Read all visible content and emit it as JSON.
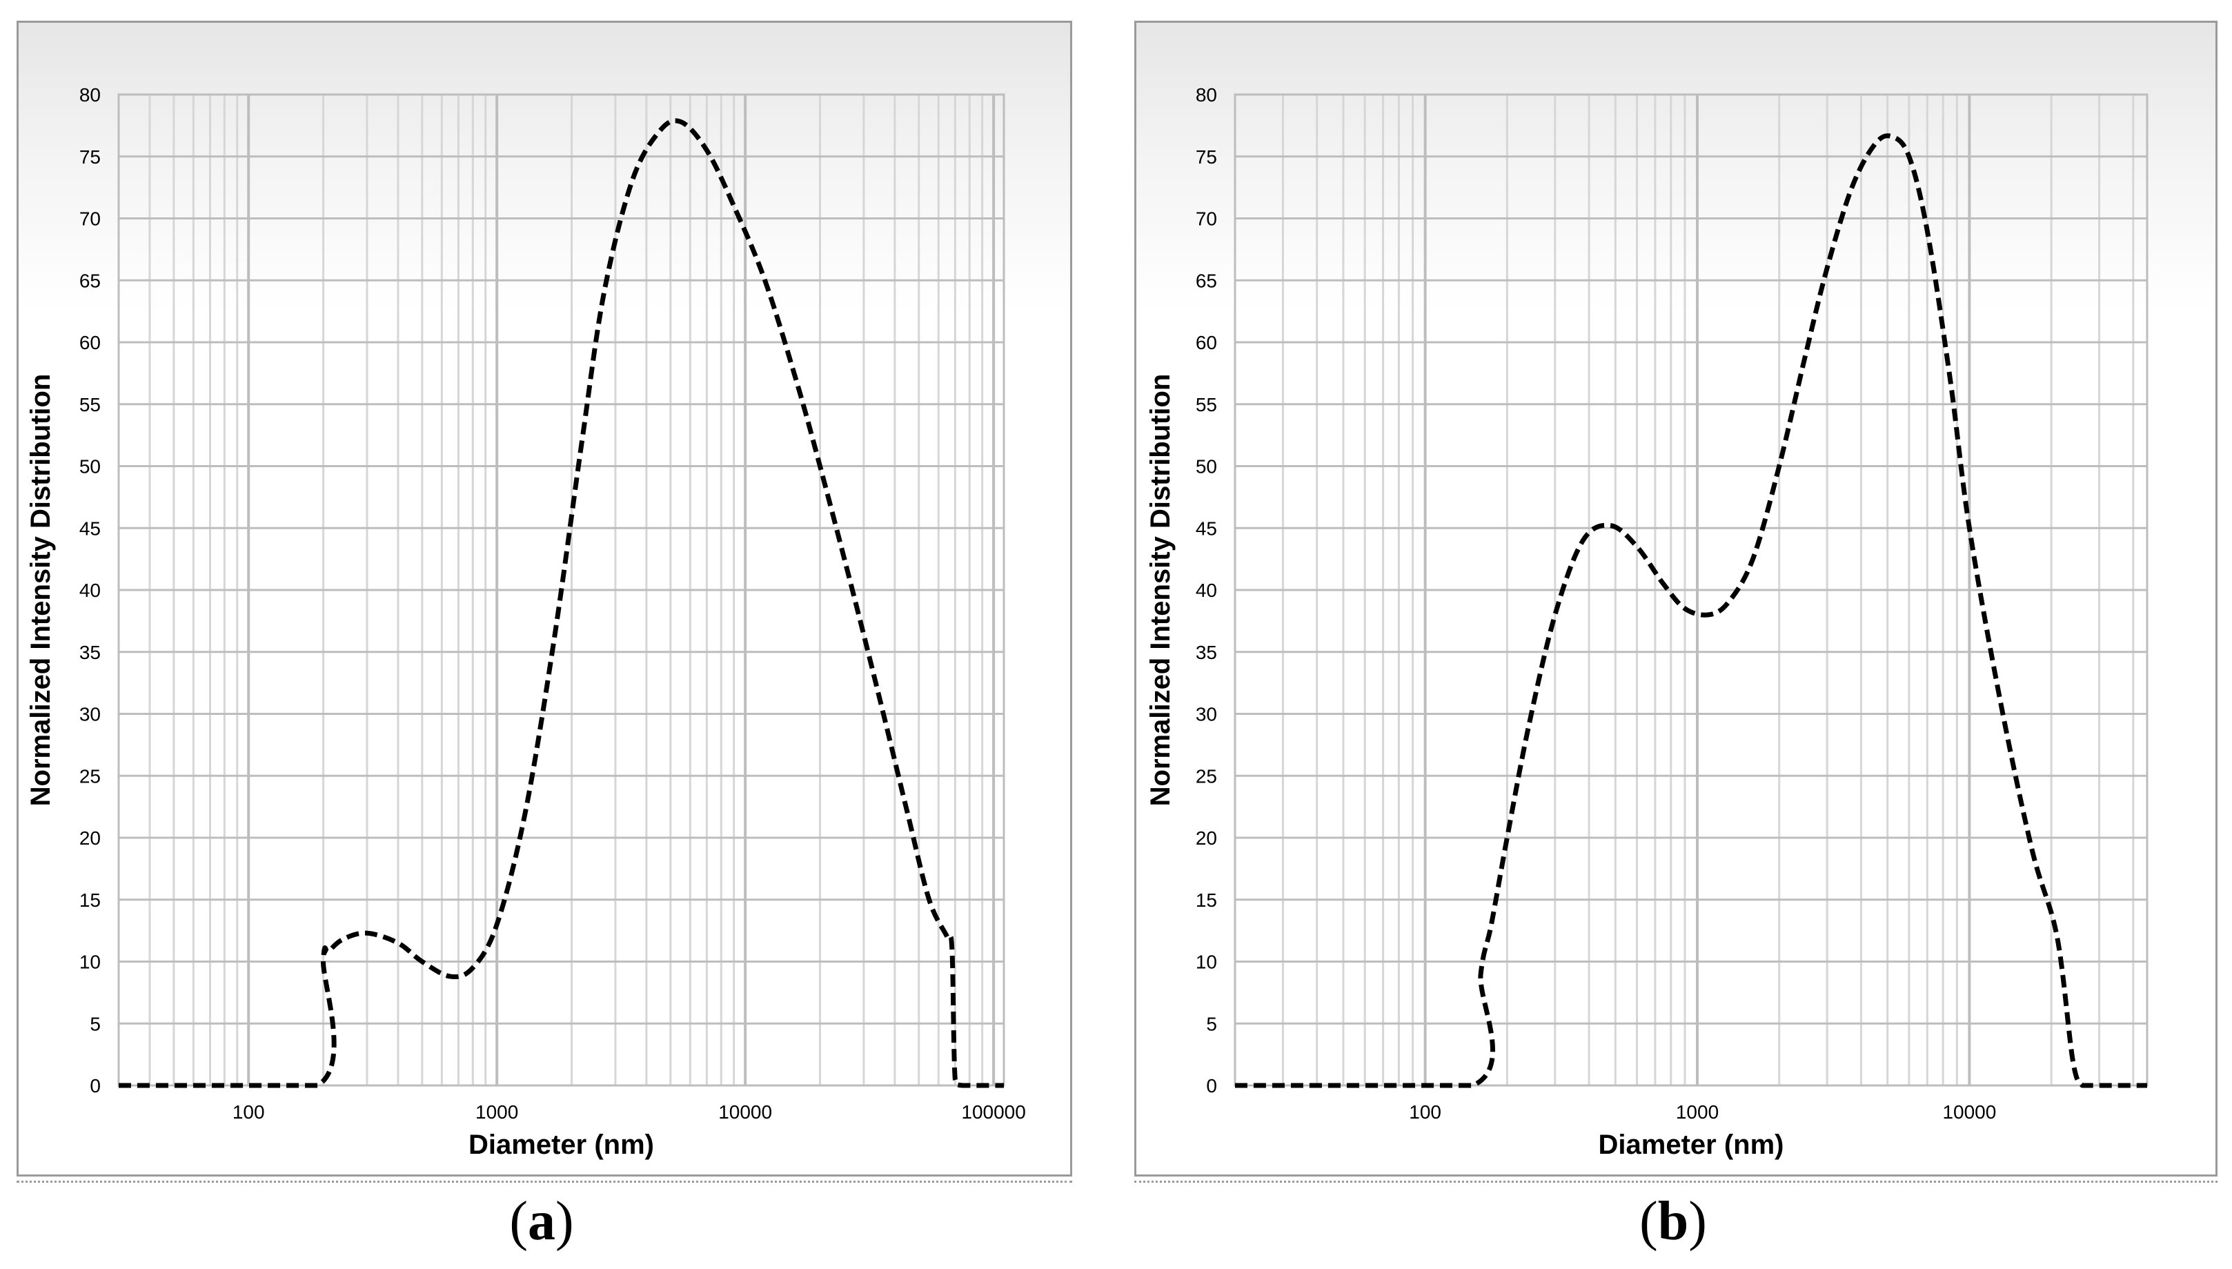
{
  "panels": [
    {
      "caption_open": "(",
      "caption_letter": "a",
      "caption_close": ")"
    },
    {
      "caption_open": "(",
      "caption_letter": "b",
      "caption_close": ")"
    }
  ],
  "colors": {
    "curve": "#000000",
    "major_grid": "#bdbdbd",
    "minor_grid": "#d6d6d6",
    "frame": "#9a9a9a"
  },
  "chart_data": [
    {
      "type": "line",
      "panel": "a",
      "xlabel": "Diameter (nm)",
      "ylabel": "Normalized Intensity Distribution",
      "x_scale": "log",
      "xlim": [
        30,
        110000
      ],
      "ylim": [
        0,
        80
      ],
      "x_ticks": [
        100,
        1000,
        10000,
        100000
      ],
      "x_tick_labels": [
        "100",
        "1000",
        "10000",
        "100000"
      ],
      "y_ticks": [
        0,
        5,
        10,
        15,
        20,
        25,
        30,
        35,
        40,
        45,
        50,
        55,
        60,
        65,
        70,
        75,
        80
      ],
      "y_tick_labels": [
        "0",
        "5",
        "10",
        "15",
        "20",
        "25",
        "30",
        "35",
        "40",
        "45",
        "50",
        "55",
        "60",
        "65",
        "70",
        "75",
        "80"
      ],
      "grid": true,
      "series": [
        {
          "line_style": "dashed",
          "x": [
            30,
            190,
            200,
            210,
            240,
            300,
            400,
            500,
            650,
            800,
            1000,
            1300,
            1700,
            2200,
            2700,
            3500,
            4500,
            5500,
            7000,
            9000,
            12000,
            16000,
            20000,
            27000,
            35000,
            45000,
            55000,
            65000,
            68000,
            70000,
            75000,
            110000
          ],
          "y": [
            0,
            0,
            10.2,
            10.8,
            11.8,
            12.3,
            11.5,
            10.0,
            8.8,
            9.5,
            13.0,
            22.0,
            36.0,
            52.0,
            64.0,
            73.0,
            77.0,
            77.8,
            75.5,
            71.0,
            65.0,
            57.0,
            50.0,
            40.0,
            31.0,
            22.0,
            15.0,
            12.0,
            11.0,
            0.5,
            0,
            0
          ]
        }
      ]
    },
    {
      "type": "line",
      "panel": "b",
      "xlabel": "Diameter (nm)",
      "ylabel": "Normalized Intensity Distribution",
      "x_scale": "log",
      "xlim": [
        20,
        45000
      ],
      "ylim": [
        0,
        80
      ],
      "x_ticks": [
        100,
        1000,
        10000
      ],
      "x_tick_labels": [
        "100",
        "1000",
        "10000"
      ],
      "y_ticks": [
        0,
        5,
        10,
        15,
        20,
        25,
        30,
        35,
        40,
        45,
        50,
        55,
        60,
        65,
        70,
        75,
        80
      ],
      "y_tick_labels": [
        "0",
        "5",
        "10",
        "15",
        "20",
        "25",
        "30",
        "35",
        "40",
        "45",
        "50",
        "55",
        "60",
        "65",
        "70",
        "75",
        "80"
      ],
      "grid": true,
      "series": [
        {
          "line_style": "dashed",
          "x": [
            20,
            150,
            160,
            175,
            200,
            240,
            300,
            380,
            480,
            600,
            750,
            900,
            1100,
            1300,
            1600,
            2000,
            2500,
            3000,
            3700,
            4500,
            5200,
            6000,
            7000,
            8500,
            10000,
            13000,
            17000,
            21000,
            24000,
            26000,
            28000,
            45000
          ],
          "y": [
            0,
            0,
            9.0,
            13.0,
            20.0,
            29.0,
            38.0,
            44.0,
            45.2,
            43.5,
            40.5,
            38.5,
            38.0,
            39.0,
            42.5,
            50.0,
            59.0,
            66.0,
            72.5,
            76.0,
            76.6,
            75.0,
            69.0,
            57.0,
            45.0,
            31.0,
            19.0,
            12.0,
            2.0,
            0,
            0,
            0
          ]
        }
      ]
    }
  ]
}
